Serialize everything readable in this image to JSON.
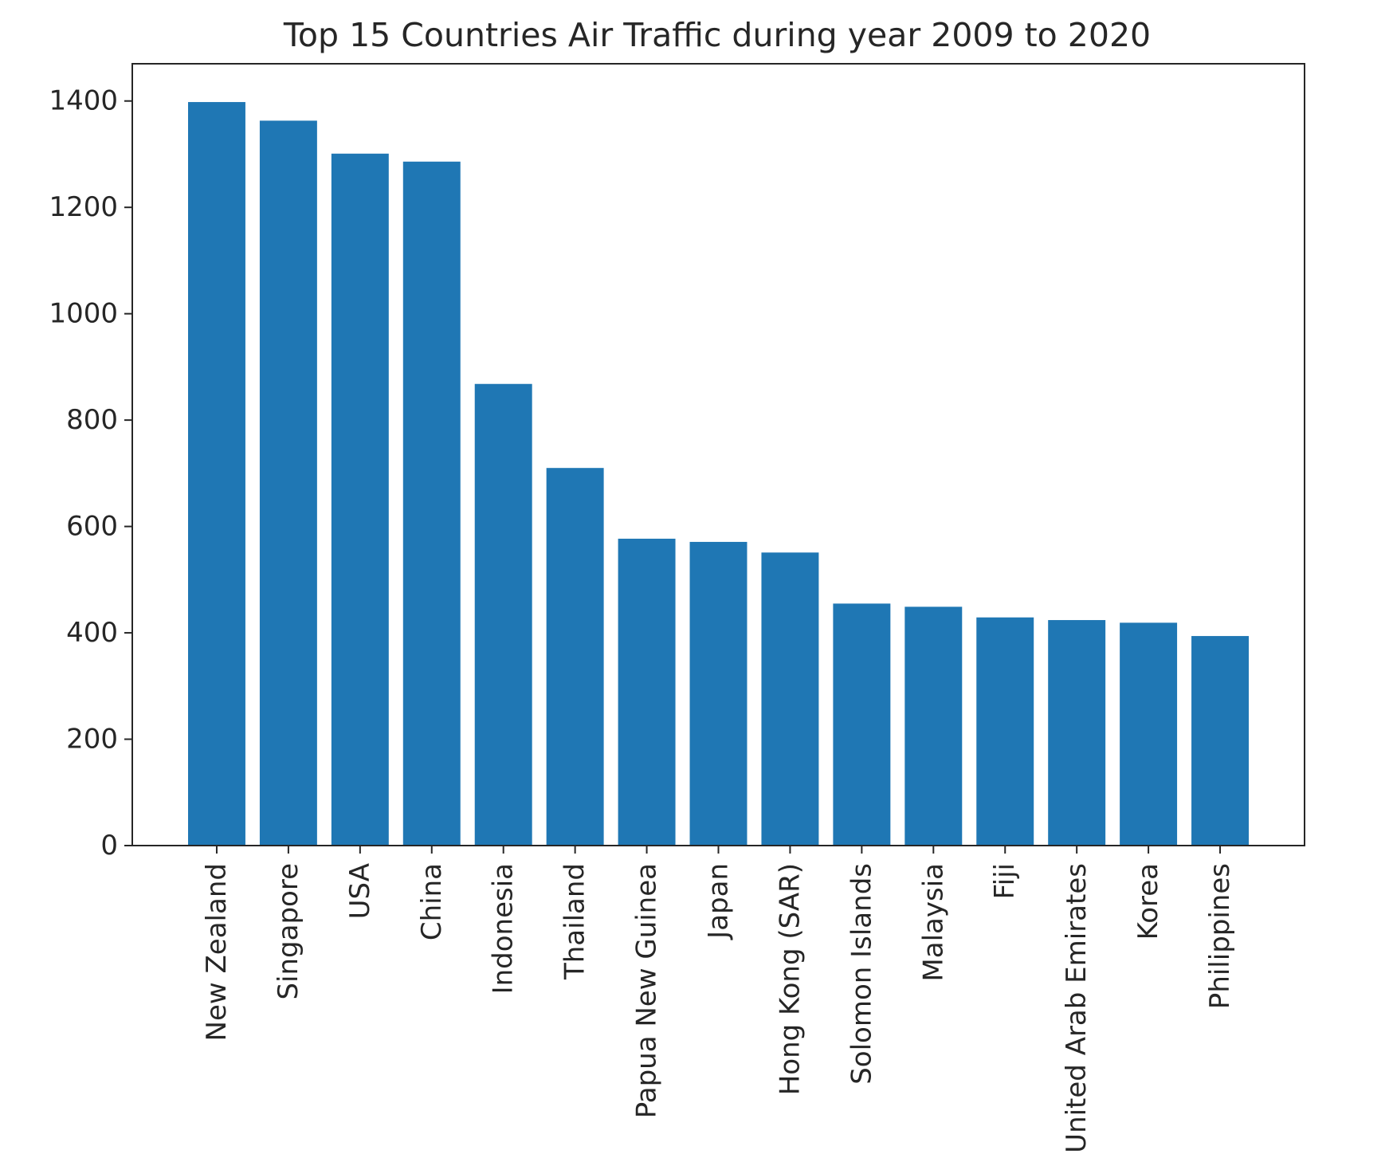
{
  "chart_data": {
    "type": "bar",
    "title": "Top 15 Countries Air Traffic during year 2009 to 2020",
    "xlabel": "",
    "ylabel": "",
    "categories": [
      "New Zealand",
      "Singapore",
      "USA",
      "China",
      "Indonesia",
      "Thailand",
      "Papua New Guinea",
      "Japan",
      "Hong Kong (SAR)",
      "Solomon Islands",
      "Malaysia",
      "Fiji",
      "United Arab Emirates",
      "Korea",
      "Philippines"
    ],
    "values": [
      1398,
      1363,
      1301,
      1286,
      868,
      710,
      577,
      571,
      551,
      455,
      449,
      429,
      424,
      419,
      394
    ],
    "ylim": [
      0,
      1470
    ],
    "yticks": [
      0,
      200,
      400,
      600,
      800,
      1000,
      1200,
      1400
    ],
    "bar_color": "#1f77b4",
    "x_tick_rotation": "vertical",
    "grid": false,
    "legend": "none"
  }
}
